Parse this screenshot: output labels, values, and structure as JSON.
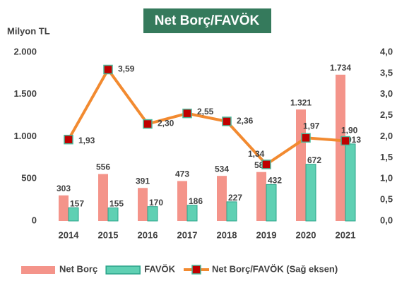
{
  "chart_data": {
    "type": "bar",
    "title": "Net Borç/FAVÖK",
    "y_axis_label": "Milyon TL",
    "categories": [
      "2014",
      "2015",
      "2016",
      "2017",
      "2018",
      "2019",
      "2020",
      "2021"
    ],
    "series": [
      {
        "name": "Net Borç",
        "type": "bar",
        "color": "#f4948a",
        "values": [
          303,
          556,
          391,
          473,
          534,
          580,
          1321,
          1734
        ],
        "value_labels": [
          "303",
          "556",
          "391",
          "473",
          "534",
          "580",
          "1.321",
          "1.734"
        ]
      },
      {
        "name": "FAVÖK",
        "type": "bar",
        "color": "#5fd0b3",
        "values": [
          157,
          155,
          170,
          186,
          227,
          432,
          672,
          913
        ]
      },
      {
        "name": "Net Borç/FAVÖK (Sağ eksen)",
        "type": "line",
        "axis": "y2",
        "color": "#f28a30",
        "marker_color": "#c00000",
        "values": [
          1.93,
          3.59,
          2.3,
          2.55,
          2.36,
          1.34,
          1.97,
          1.9
        ],
        "value_labels": [
          "1,93",
          "3,59",
          "2,30",
          "2,55",
          "2,36",
          "1,34",
          "1,97",
          "1,90"
        ]
      }
    ],
    "ylim": [
      0,
      2000
    ],
    "yticks": [
      0,
      500,
      {
        "value": 1000,
        "label": "1.000"
      },
      {
        "value": 1500,
        "label": "1.500"
      },
      {
        "value": 2000,
        "label": "2.000"
      }
    ],
    "y2lim": [
      0,
      4
    ],
    "y2ticks": [
      {
        "value": 0,
        "label": "0,0"
      },
      {
        "value": 0.5,
        "label": "0,5"
      },
      {
        "value": 1,
        "label": "1,0"
      },
      {
        "value": 1.5,
        "label": "1,5"
      },
      {
        "value": 2,
        "label": "2,0"
      },
      {
        "value": 2.5,
        "label": "2,5"
      },
      {
        "value": 3,
        "label": "3,0"
      },
      {
        "value": 3.5,
        "label": "3,5"
      },
      {
        "value": 4,
        "label": "4,0"
      }
    ],
    "grid": false,
    "legend": "bottom"
  }
}
